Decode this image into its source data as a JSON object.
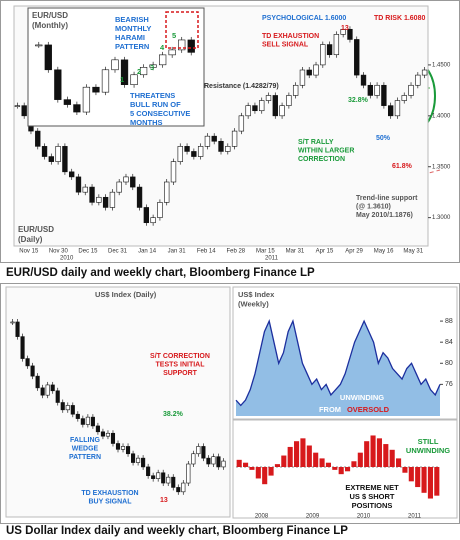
{
  "figure_1": {
    "caption": "EUR/USD daily and weekly chart, Bloomberg Finance LP",
    "daily": {
      "type": "candle",
      "label": [
        "EUR/USD",
        "(Daily)"
      ],
      "x_labels": [
        "Nov 15",
        "Nov 30",
        "Dec 15",
        "Dec 31",
        "Jan 14",
        "Jan 31",
        "Feb 14",
        "Feb 28",
        "Mar 15",
        "Mar 31",
        "Apr 15",
        "Apr 29",
        "May 16",
        "May 31"
      ],
      "years": [
        "2010",
        "2011"
      ],
      "values": [
        1.41,
        1.4,
        1.385,
        1.37,
        1.36,
        1.355,
        1.37,
        1.345,
        1.34,
        1.325,
        1.33,
        1.315,
        1.32,
        1.31,
        1.325,
        1.335,
        1.34,
        1.33,
        1.31,
        1.295,
        1.3,
        1.315,
        1.335,
        1.355,
        1.37,
        1.365,
        1.36,
        1.37,
        1.38,
        1.375,
        1.365,
        1.37,
        1.385,
        1.4,
        1.41,
        1.405,
        1.415,
        1.42,
        1.4,
        1.41,
        1.42,
        1.43,
        1.445,
        1.44,
        1.45,
        1.47,
        1.46,
        1.48,
        1.485,
        1.475,
        1.44,
        1.43,
        1.42,
        1.43,
        1.41,
        1.4,
        1.415,
        1.42,
        1.43,
        1.44,
        1.445
      ],
      "ylim": [
        1.28,
        1.5
      ],
      "yticks": [
        {
          "value": 1.3,
          "label": "1.3000"
        },
        {
          "value": 1.35,
          "label": "1.3500"
        },
        {
          "value": 1.4,
          "label": "1.4000"
        },
        {
          "value": 1.45,
          "label": "1.4500"
        }
      ],
      "annotations": [
        {
          "lines": [
            "PSYCHOLOGICAL 1.6000"
          ],
          "color": "#1f6fd1"
        },
        {
          "lines": [
            "13"
          ],
          "color": "#d7191c"
        },
        {
          "lines": [
            "TD RISK 1.6080"
          ],
          "color": "#d7191c"
        },
        {
          "lines": [
            "TD EXHAUSTION",
            "SELL SIGNAL"
          ],
          "color": "#d7191c"
        },
        {
          "lines": [
            "Resistance (1.4282/79)"
          ],
          "color": "#333333"
        },
        {
          "lines": [
            "32.8%"
          ],
          "color": "#1a9a3a"
        },
        {
          "lines": [
            "50%"
          ],
          "color": "#1f6fd1"
        },
        {
          "lines": [
            "61.8%"
          ],
          "color": "#d7191c"
        },
        {
          "lines": [
            "S/T RALLY",
            "WITHIN LARGER",
            "CORRECTION"
          ],
          "color": "#1a9a3a"
        },
        {
          "lines": [
            "Trend-line support",
            "(@ 1.3610)",
            "May 2010/1.1876)"
          ],
          "color": "#555555"
        }
      ]
    },
    "monthly": {
      "type": "candle",
      "label": [
        "EUR/USD",
        "(Monthly)"
      ],
      "values": [
        1.46,
        1.36,
        1.24,
        1.22,
        1.19,
        1.29,
        1.27,
        1.36,
        1.4,
        1.3,
        1.34,
        1.37,
        1.38,
        1.42,
        1.44,
        1.48,
        1.43
      ],
      "ylim": [
        1.15,
        1.52
      ],
      "annotations": [
        {
          "lines": [
            "BEARISH",
            "MONTHLY",
            "HARAMI",
            "PATTERN"
          ],
          "color": "#1f6fd1"
        },
        {
          "lines": [
            "1"
          ],
          "color": "#1a9a3a"
        },
        {
          "lines": [
            "2"
          ],
          "color": "#1a9a3a"
        },
        {
          "lines": [
            "3"
          ],
          "color": "#1a9a3a"
        },
        {
          "lines": [
            "4"
          ],
          "color": "#1a9a3a"
        },
        {
          "lines": [
            "5"
          ],
          "color": "#1a9a3a"
        },
        {
          "lines": [
            "THREATENS",
            "BULL RUN OF",
            "5 CONSECUTIVE",
            "MONTHS"
          ],
          "color": "#1f6fd1"
        }
      ]
    }
  },
  "figure_2": {
    "caption": "US Dollar Index daily and weekly chart, Bloomberg Finance LP",
    "daily": {
      "type": "candle",
      "label": [
        "US$ Index (Daily)"
      ],
      "values": [
        84.5,
        83.5,
        82,
        81.5,
        80.8,
        80,
        79.5,
        80.2,
        79.8,
        79,
        78.5,
        78.8,
        78.2,
        77.9,
        77.5,
        78,
        77.4,
        77,
        76.7,
        76.9,
        76.2,
        75.8,
        76,
        75.5,
        74.9,
        75.2,
        74.6,
        74,
        73.8,
        74.2,
        73.5,
        73.9,
        73.2,
        72.9,
        73.5,
        74.8,
        75.5,
        76,
        75.2,
        74.8,
        75.3,
        74.6,
        75
      ],
      "ylim": [
        72,
        86
      ],
      "annotations": [
        {
          "lines": [
            "S/T CORRECTION",
            "TESTS INITIAL",
            "SUPPORT"
          ],
          "color": "#d7191c"
        },
        {
          "lines": [
            "38.2%"
          ],
          "color": "#1a9a3a"
        },
        {
          "lines": [
            "FALLING",
            "WEDGE",
            "PATTERN"
          ],
          "color": "#1f6fd1"
        },
        {
          "lines": [
            "TD EXHAUSTION",
            "BUY SIGNAL"
          ],
          "color": "#1f6fd1"
        },
        {
          "lines": [
            "13"
          ],
          "color": "#d7191c"
        }
      ]
    },
    "weekly": {
      "type": "area",
      "label": [
        "US$ Index",
        "(Weekly)"
      ],
      "color": "#1c2f9e",
      "values": [
        73,
        72,
        73,
        75,
        78,
        82,
        86,
        88,
        84,
        80,
        82,
        86,
        88,
        84,
        80,
        78,
        76,
        77,
        75,
        76,
        74,
        75,
        76,
        78,
        81,
        84,
        86,
        88,
        86,
        84,
        80,
        82,
        81,
        79,
        78,
        77,
        79,
        80,
        78,
        76,
        77,
        75,
        74,
        76
      ],
      "ylim": [
        70,
        92
      ],
      "yticks": [
        76,
        80,
        84,
        88
      ],
      "annotations": [
        {
          "lines": [
            "UNWINDING"
          ],
          "color": "#ffffff"
        },
        {
          "lines": [
            "FROM"
          ],
          "color": "#ffffff"
        },
        {
          "lines": [
            "OVERSOLD"
          ],
          "color": "#d7191c"
        }
      ]
    },
    "positions": {
      "type": "bar",
      "color": "#d7191c",
      "values": [
        5,
        3,
        -2,
        -8,
        -12,
        -6,
        2,
        8,
        14,
        18,
        20,
        15,
        10,
        6,
        3,
        -2,
        -5,
        -3,
        4,
        10,
        18,
        22,
        20,
        16,
        12,
        6,
        -4,
        -10,
        -14,
        -18,
        -22,
        -20
      ],
      "ylim": [
        -30,
        30
      ],
      "x_labels": [
        "2008",
        "2009",
        "2010",
        "2011"
      ],
      "annotations": [
        {
          "lines": [
            "STILL",
            "UNWINDING"
          ],
          "color": "#1a9a3a"
        },
        {
          "lines": [
            "EXTREME NET",
            "US $ SHORT",
            "POSITIONS"
          ],
          "color": "#111111"
        }
      ]
    }
  }
}
